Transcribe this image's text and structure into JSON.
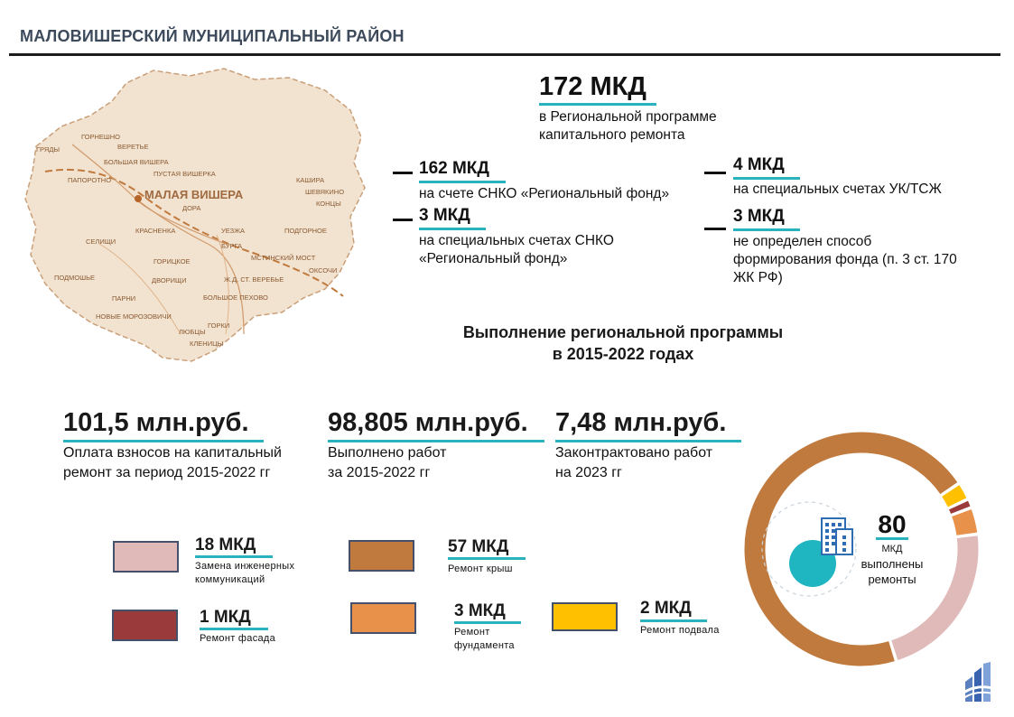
{
  "header": {
    "title": "МАЛОВИШЕРСКИЙ МУНИЦИПАЛЬНЫЙ РАЙОН"
  },
  "map": {
    "town": "МАЛАЯ ВИШЕРА",
    "places": [
      "ГОРНЕШНО",
      "ВЕРЕТЬЕ",
      "ГРЯДЫ",
      "БОЛЬШАЯ ВИШЕРА",
      "ПУСТАЯ ВИШЕРКА",
      "ПАПОРОТНО",
      "ДОРА",
      "КАШИРА",
      "ШЕВЯКИНО",
      "КОНЦЫ",
      "СЕЛИЩИ",
      "КРАСНЕНКА",
      "УЕЗЖА",
      "ПОДГОРНОЕ",
      "БУРГА",
      "МСТИНСКИЙ МОСТ",
      "ГОРИЦКОЕ",
      "ОКСОЧИ",
      "ПОДМОШЬЕ",
      "ДВОРИЩИ",
      "Ж.Д. СТ. ВЕРЕБЬЕ",
      "ПАРНИ",
      "БОЛЬШОЕ ПЕХОВО",
      "НОВЫЕ МОРОЗОВИЧИ",
      "ГОРКИ",
      "ЛЮБЦЫ",
      "КЛЕНИЦЫ"
    ]
  },
  "summary": {
    "total_value": "172 МКД",
    "total_text_1": "в Региональной программе",
    "total_text_2": "капитального ремонта",
    "items": [
      {
        "value": "162 МКД",
        "text_1": "на счете СНКО «Региональный фонд»",
        "text_2": "",
        "text_3": ""
      },
      {
        "value": "3 МКД",
        "text_1": "на специальных счетах СНКО",
        "text_2": "«Региональный фонд»",
        "text_3": ""
      },
      {
        "value": "4 МКД",
        "text_1": "на специальных счетах УК/ТСЖ",
        "text_2": "",
        "text_3": ""
      },
      {
        "value": "3 МКД",
        "text_1": "не определен способ",
        "text_2": "формирования фонда (п. 3 ст. 170",
        "text_3": "ЖК РФ)"
      }
    ]
  },
  "section": {
    "title_1": "Выполнение региональной программы",
    "title_2": "в 2015-2022  годах"
  },
  "finance": [
    {
      "value": "101,5 млн.руб.",
      "text_1": "Оплата взносов на капитальный",
      "text_2": "ремонт за период 2015-2022 гг"
    },
    {
      "value": "98,805 млн.руб.",
      "text_1": "Выполнено работ",
      "text_2": "за 2015-2022 гг"
    },
    {
      "value": "7,48 млн.руб.",
      "text_1": "Законтрактовано работ",
      "text_2": "на 2023 гг"
    }
  ],
  "legend": [
    {
      "value": "18 МКД",
      "text_1": "Замена инженерных",
      "text_2": "коммуникаций",
      "color": "#e0b9b9"
    },
    {
      "value": "57 МКД",
      "text_1": "Ремонт крыш",
      "text_2": "",
      "color": "#c07a3e"
    },
    {
      "value": "1 МКД",
      "text_1": "Ремонт фасада",
      "text_2": "",
      "color": "#9b3a3a"
    },
    {
      "value": "3 МКД",
      "text_1": "Ремонт",
      "text_2": "фундамента",
      "color": "#e8914a"
    },
    {
      "value": "2 МКД",
      "text_1": "Ремонт подвала",
      "text_2": "",
      "color": "#ffc000"
    }
  ],
  "donut": {
    "total_value": "80",
    "total_text_1": "МКД",
    "total_text_2": "выполнены",
    "total_text_3": "ремонты"
  },
  "chart_data": {
    "type": "pie",
    "categories": [
      "Ремонт крыш",
      "Замена инженерных коммуникаций",
      "Ремонт фундамента",
      "Ремонт фасада",
      "Ремонт подвала"
    ],
    "values": [
      57,
      18,
      3,
      1,
      2
    ],
    "colors": [
      "#c07a3e",
      "#e0b9b9",
      "#e8914a",
      "#9b3a3a",
      "#ffc000"
    ]
  }
}
